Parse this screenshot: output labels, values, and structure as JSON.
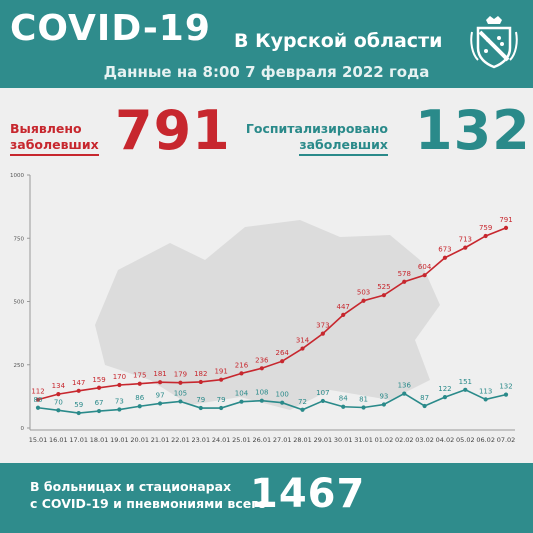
{
  "header": {
    "title": "COVID-19",
    "region": "В Курской области",
    "date": "Данные на 8:00 7 февраля 2022 года"
  },
  "stats": {
    "detected_label_1": "Выявлено",
    "detected_label_2": "заболевших",
    "detected_value": "791",
    "hospitalized_label_1": "Госпитализировано",
    "hospitalized_label_2": "заболевших",
    "hospitalized_value": "132"
  },
  "footer": {
    "text_1": "В больницах и стационарах",
    "text_2": "с COVID-19 и пневмониями всего",
    "value": "1467"
  },
  "colors": {
    "header_bg": "#2f8c8c",
    "detected": "#c7272e",
    "hospitalized": "#2a8a8a"
  },
  "chart_data": {
    "type": "line",
    "categories": [
      "15.01",
      "16.01",
      "17.01",
      "18.01",
      "19.01",
      "20.01",
      "21.01",
      "22.01",
      "23.01",
      "24.01",
      "25.01",
      "26.01",
      "27.01",
      "28.01",
      "29.01",
      "30.01",
      "31.01",
      "01.02",
      "02.02",
      "03.02",
      "04.02",
      "05.02",
      "06.02",
      "07.02"
    ],
    "series": [
      {
        "name": "",
        "color": "#c7272e",
        "values": [
          112,
          134,
          147,
          159,
          170,
          175,
          181,
          179,
          182,
          191,
          216,
          236,
          264,
          314,
          373,
          447,
          503,
          525,
          578,
          604,
          673,
          713,
          759,
          791
        ]
      },
      {
        "name": "",
        "color": "#2a8a8a",
        "values": [
          80,
          70,
          59,
          67,
          73,
          86,
          97,
          105,
          79,
          79,
          104,
          108,
          100,
          72,
          107,
          84,
          81,
          93,
          136,
          87,
          122,
          151,
          113,
          132
        ]
      }
    ],
    "yticks": [
      0,
      250,
      500,
      750,
      1000
    ],
    "ylim": [
      0,
      1000
    ],
    "grid": false,
    "legend": "none"
  }
}
